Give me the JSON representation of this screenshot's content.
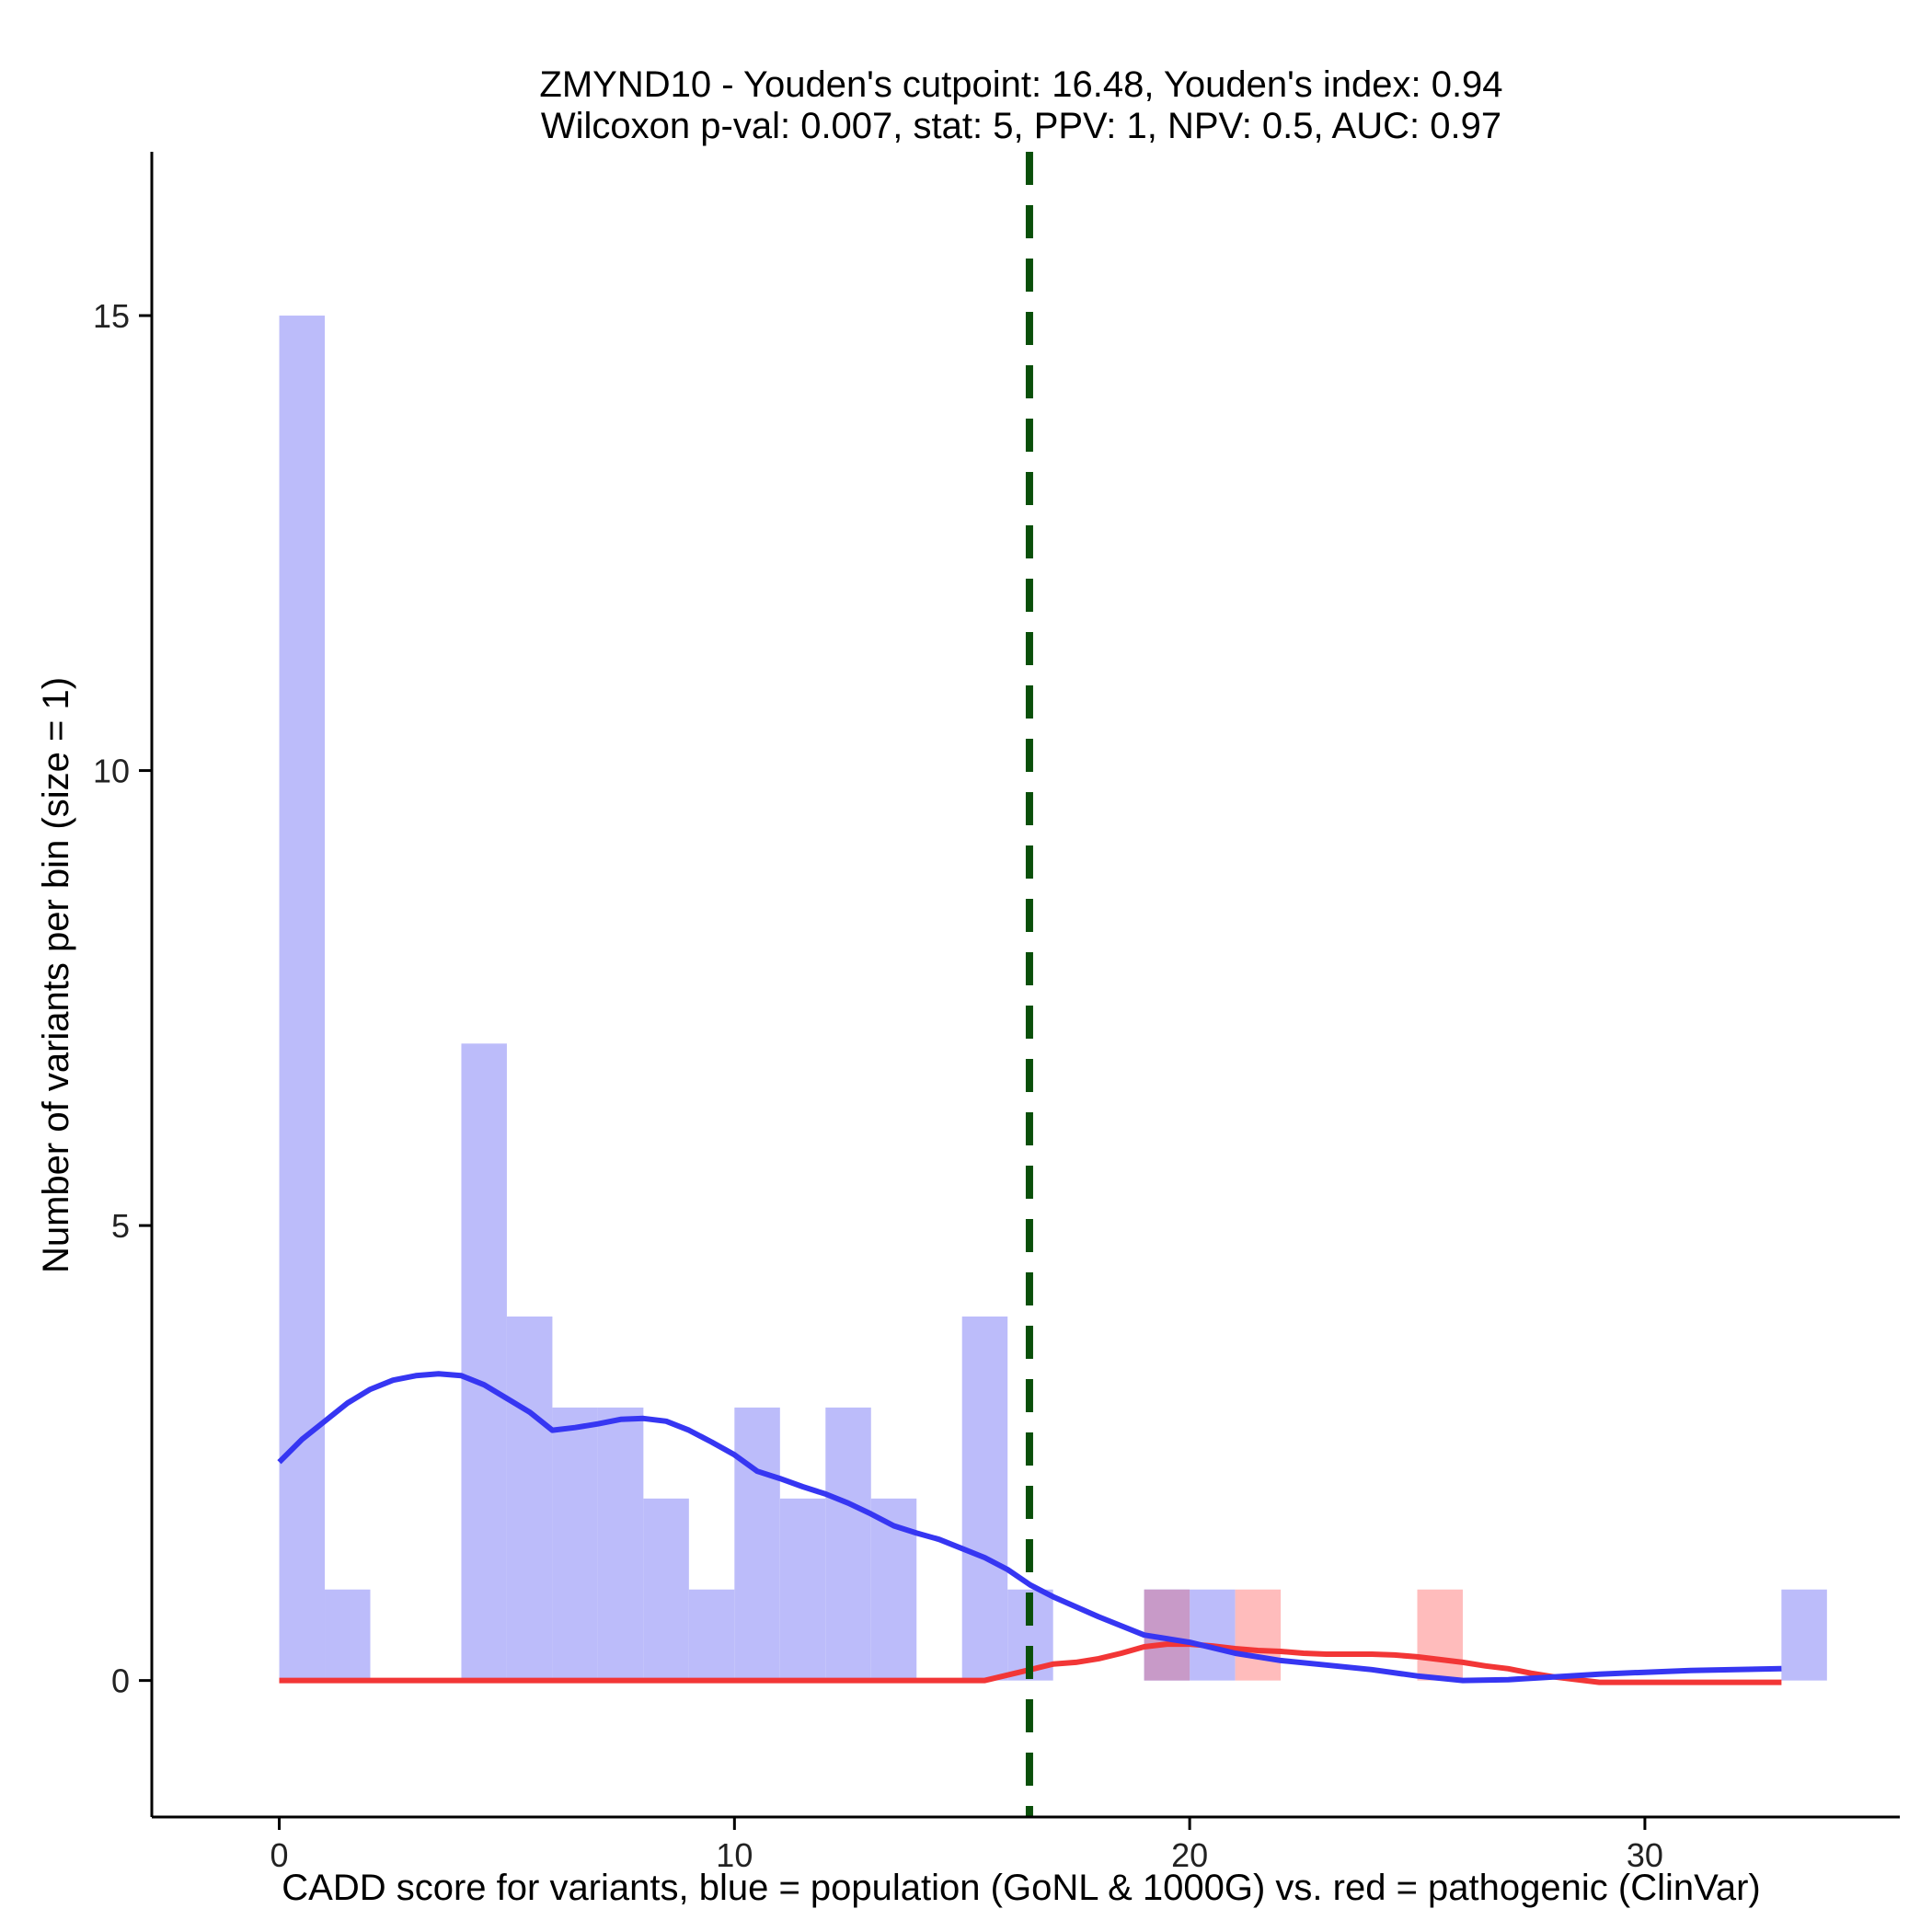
{
  "chart_data": {
    "type": "bar",
    "title_line1": "ZMYND10 - Youden's cutpoint: 16.48, Youden's index: 0.94",
    "title_line2": "Wilcoxon p-val: 0.007, stat: 5, PPV: 1, NPV: 0.5, AUC: 0.97",
    "xlabel": "CADD score for variants, blue = population (GoNL & 1000G) vs. red = pathogenic (ClinVar)",
    "ylabel": "Number of variants per bin (size = 1)",
    "xlim": [
      -2.8,
      35.6
    ],
    "ylim": [
      -1.5,
      16.8
    ],
    "x_ticks": [
      0,
      10,
      20,
      30
    ],
    "x_tick_labels": [
      "0",
      "10",
      "20",
      "30"
    ],
    "y_ticks": [
      0,
      5,
      10,
      15
    ],
    "y_tick_labels": [
      "0",
      "5",
      "10",
      "15"
    ],
    "bin_width": 1,
    "cutpoint": 16.48,
    "series": [
      {
        "name": "population (GoNL & 1000G)",
        "color": "#bcbcfa",
        "bins": [
          {
            "x0": 0,
            "value": 15
          },
          {
            "x0": 1,
            "value": 1
          },
          {
            "x0": 4,
            "value": 7
          },
          {
            "x0": 5,
            "value": 4
          },
          {
            "x0": 6,
            "value": 3
          },
          {
            "x0": 7,
            "value": 3
          },
          {
            "x0": 8,
            "value": 2
          },
          {
            "x0": 9,
            "value": 1
          },
          {
            "x0": 10,
            "value": 3
          },
          {
            "x0": 11,
            "value": 2
          },
          {
            "x0": 12,
            "value": 3
          },
          {
            "x0": 13,
            "value": 2
          },
          {
            "x0": 15,
            "value": 4
          },
          {
            "x0": 16,
            "value": 1
          },
          {
            "x0": 19,
            "value": 1
          },
          {
            "x0": 20,
            "value": 1
          },
          {
            "x0": 33,
            "value": 1
          }
        ]
      },
      {
        "name": "pathogenic (ClinVar)",
        "color": "#ffbcbc",
        "bins": [
          {
            "x0": 19,
            "value": 1
          },
          {
            "x0": 21,
            "value": 1
          },
          {
            "x0": 25,
            "value": 1
          }
        ]
      }
    ],
    "overlap_color": "#c89ac8",
    "density_curves": [
      {
        "name": "population density",
        "color": "#3636f2",
        "x": [
          0,
          0.5,
          1,
          1.5,
          2,
          2.5,
          3,
          3.5,
          4,
          4.5,
          5,
          5.5,
          6,
          6.5,
          7,
          7.5,
          8,
          8.5,
          9,
          9.5,
          10,
          10.5,
          11,
          11.5,
          12,
          12.5,
          13,
          13.5,
          14,
          14.5,
          15,
          15.5,
          16,
          16.5,
          17,
          18,
          19,
          20,
          21,
          22,
          23,
          24,
          25,
          26,
          27,
          28,
          29,
          30,
          31,
          32,
          33
        ],
        "y": [
          2.4,
          2.65,
          2.85,
          3.05,
          3.2,
          3.3,
          3.35,
          3.37,
          3.35,
          3.25,
          3.1,
          2.95,
          2.75,
          2.78,
          2.82,
          2.87,
          2.88,
          2.85,
          2.75,
          2.62,
          2.48,
          2.3,
          2.22,
          2.13,
          2.05,
          1.95,
          1.83,
          1.7,
          1.62,
          1.55,
          1.45,
          1.35,
          1.22,
          1.05,
          0.92,
          0.7,
          0.5,
          0.42,
          0.3,
          0.22,
          0.17,
          0.12,
          0.05,
          0.0,
          0.01,
          0.04,
          0.07,
          0.09,
          0.11,
          0.12,
          0.13
        ]
      },
      {
        "name": "pathogenic density",
        "color": "#f23636",
        "x": [
          0,
          2,
          4,
          6,
          8,
          10,
          12,
          14,
          15,
          15.5,
          16,
          16.5,
          17,
          17.5,
          18,
          18.5,
          19,
          19.5,
          20,
          20.5,
          21,
          21.5,
          22,
          22.5,
          23,
          23.5,
          24,
          24.5,
          25,
          25.5,
          26,
          26.5,
          27,
          27.5,
          28,
          28.5,
          29,
          30,
          31,
          32,
          33
        ],
        "y": [
          0,
          0,
          0,
          0,
          0,
          0,
          0,
          0,
          0,
          0.0,
          0.06,
          0.12,
          0.18,
          0.2,
          0.24,
          0.3,
          0.37,
          0.4,
          0.4,
          0.38,
          0.35,
          0.33,
          0.32,
          0.3,
          0.29,
          0.29,
          0.29,
          0.28,
          0.26,
          0.23,
          0.2,
          0.16,
          0.13,
          0.08,
          0.04,
          0.01,
          -0.02,
          -0.02,
          -0.02,
          -0.02,
          -0.02
        ]
      }
    ],
    "cutpoint_color": "#0a4f0a"
  }
}
